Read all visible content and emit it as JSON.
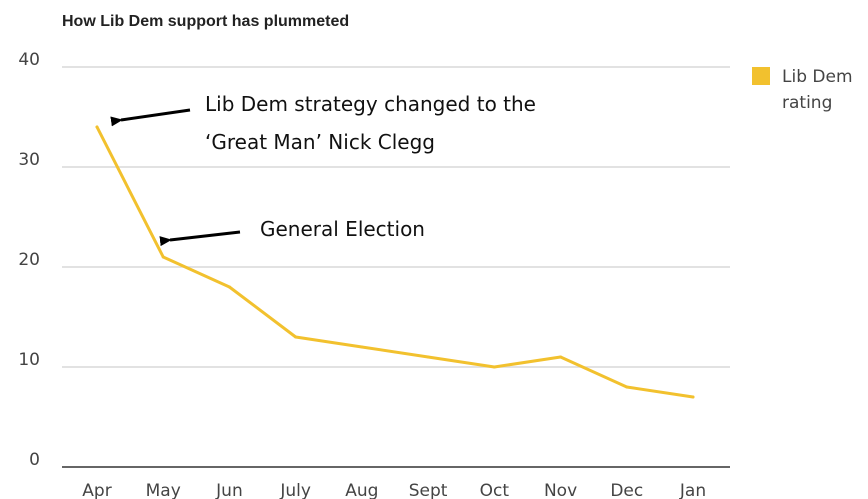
{
  "chart_data": {
    "type": "line",
    "title": "How Lib Dem support has plummeted",
    "xlabel": "",
    "ylabel": "",
    "categories": [
      "Apr",
      "May",
      "Jun",
      "July",
      "Aug",
      "Sept",
      "Oct",
      "Nov",
      "Dec",
      "Jan"
    ],
    "series": [
      {
        "name": "Lib Dem rating",
        "values": [
          34,
          21,
          18,
          13,
          12,
          11,
          10,
          11,
          8,
          7
        ]
      }
    ],
    "ylim": [
      0,
      40
    ],
    "yticks": [
      "0",
      "10",
      "20",
      "30",
      "40"
    ],
    "grid": true,
    "legend_position": "right",
    "legend": {
      "lines": [
        "Lib Dem",
        "rating"
      ]
    },
    "annotations": [
      {
        "lines": [
          "Lib Dem strategy changed to the",
          "‘Great Man’ Nick Clegg"
        ],
        "target_category": "Apr",
        "target_value": 34
      },
      {
        "lines": [
          "General Election"
        ],
        "target_category": "May",
        "target_value": 21
      }
    ],
    "colors": {
      "series": "#f2c12e",
      "grid": "#d9d9d9",
      "text": "#444444"
    }
  }
}
